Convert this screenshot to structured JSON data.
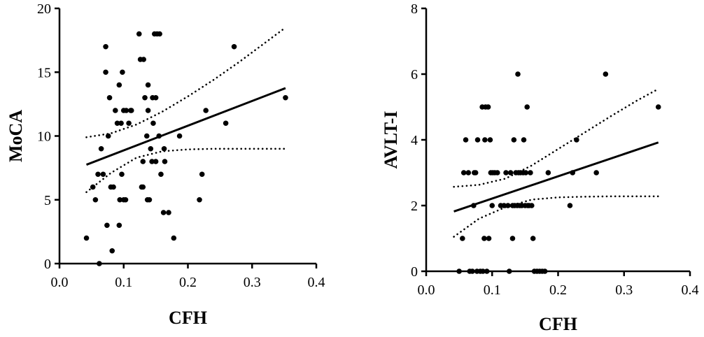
{
  "chart_data": [
    {
      "type": "scatter",
      "title": "",
      "xlabel": "CFH",
      "ylabel": "MoCA",
      "xlim": [
        0.0,
        0.4
      ],
      "ylim": [
        0,
        20
      ],
      "xticks": [
        "0.0",
        "0.1",
        "0.2",
        "0.3",
        "0.4"
      ],
      "yticks": [
        "0",
        "5",
        "10",
        "15",
        "20"
      ],
      "xtick_values": [
        0.0,
        0.1,
        0.2,
        0.3,
        0.4
      ],
      "ytick_values": [
        0,
        5,
        10,
        15,
        20
      ],
      "grid": false,
      "points": [
        [
          0.042,
          2
        ],
        [
          0.052,
          6
        ],
        [
          0.056,
          5
        ],
        [
          0.06,
          7
        ],
        [
          0.062,
          0
        ],
        [
          0.065,
          9
        ],
        [
          0.068,
          7
        ],
        [
          0.072,
          15
        ],
        [
          0.072,
          17
        ],
        [
          0.074,
          3
        ],
        [
          0.076,
          10
        ],
        [
          0.078,
          13
        ],
        [
          0.08,
          6
        ],
        [
          0.082,
          1
        ],
        [
          0.084,
          6
        ],
        [
          0.087,
          12
        ],
        [
          0.09,
          11
        ],
        [
          0.093,
          14
        ],
        [
          0.093,
          3
        ],
        [
          0.094,
          5
        ],
        [
          0.096,
          11
        ],
        [
          0.097,
          7
        ],
        [
          0.098,
          15
        ],
        [
          0.1,
          5
        ],
        [
          0.1,
          12
        ],
        [
          0.103,
          5
        ],
        [
          0.104,
          12
        ],
        [
          0.108,
          11
        ],
        [
          0.111,
          12
        ],
        [
          0.112,
          12
        ],
        [
          0.124,
          18
        ],
        [
          0.126,
          16
        ],
        [
          0.128,
          6
        ],
        [
          0.13,
          6
        ],
        [
          0.13,
          8
        ],
        [
          0.131,
          16
        ],
        [
          0.133,
          13
        ],
        [
          0.136,
          10
        ],
        [
          0.137,
          5
        ],
        [
          0.138,
          14
        ],
        [
          0.138,
          12
        ],
        [
          0.14,
          5
        ],
        [
          0.142,
          9
        ],
        [
          0.144,
          8
        ],
        [
          0.145,
          13
        ],
        [
          0.146,
          11
        ],
        [
          0.148,
          18
        ],
        [
          0.15,
          8
        ],
        [
          0.15,
          13
        ],
        [
          0.152,
          18
        ],
        [
          0.155,
          10
        ],
        [
          0.156,
          18
        ],
        [
          0.158,
          7
        ],
        [
          0.162,
          4
        ],
        [
          0.163,
          9
        ],
        [
          0.164,
          8
        ],
        [
          0.17,
          4
        ],
        [
          0.178,
          2
        ],
        [
          0.187,
          10
        ],
        [
          0.218,
          5
        ],
        [
          0.222,
          7
        ],
        [
          0.228,
          12
        ],
        [
          0.259,
          11
        ],
        [
          0.272,
          17
        ],
        [
          0.352,
          13
        ]
      ],
      "regression": {
        "x": [
          0.042,
          0.352
        ],
        "y": [
          7.75,
          13.75
        ]
      },
      "ci_upper": {
        "x": [
          0.042,
          0.08,
          0.12,
          0.16,
          0.2,
          0.24,
          0.28,
          0.32,
          0.352
        ],
        "y": [
          9.9,
          10.2,
          10.9,
          11.9,
          13.1,
          14.4,
          15.8,
          17.3,
          18.5
        ]
      },
      "ci_lower": {
        "x": [
          0.042,
          0.08,
          0.12,
          0.16,
          0.2,
          0.24,
          0.28,
          0.32,
          0.352
        ],
        "y": [
          5.6,
          7.1,
          8.3,
          8.8,
          8.95,
          9.0,
          9.0,
          9.0,
          9.0
        ]
      }
    },
    {
      "type": "scatter",
      "title": "",
      "xlabel": "CFH",
      "ylabel": "AVLT-I",
      "xlim": [
        0.0,
        0.4
      ],
      "ylim": [
        0,
        8
      ],
      "xticks": [
        "0.0",
        "0.1",
        "0.2",
        "0.3",
        "0.4"
      ],
      "yticks": [
        "0",
        "2",
        "4",
        "6",
        "8"
      ],
      "xtick_values": [
        0.0,
        0.1,
        0.2,
        0.3,
        0.4
      ],
      "ytick_values": [
        0,
        2,
        4,
        6,
        8
      ],
      "grid": false,
      "points": [
        [
          0.05,
          0
        ],
        [
          0.055,
          1
        ],
        [
          0.057,
          3
        ],
        [
          0.06,
          4
        ],
        [
          0.064,
          3
        ],
        [
          0.066,
          0
        ],
        [
          0.07,
          0
        ],
        [
          0.072,
          2
        ],
        [
          0.073,
          3
        ],
        [
          0.075,
          3
        ],
        [
          0.077,
          0
        ],
        [
          0.078,
          4
        ],
        [
          0.082,
          0
        ],
        [
          0.085,
          5
        ],
        [
          0.086,
          0
        ],
        [
          0.088,
          1
        ],
        [
          0.089,
          4
        ],
        [
          0.09,
          5
        ],
        [
          0.092,
          0
        ],
        [
          0.094,
          5
        ],
        [
          0.095,
          1
        ],
        [
          0.097,
          4
        ],
        [
          0.098,
          3
        ],
        [
          0.1,
          2
        ],
        [
          0.101,
          3
        ],
        [
          0.104,
          3
        ],
        [
          0.108,
          3
        ],
        [
          0.113,
          2
        ],
        [
          0.118,
          2
        ],
        [
          0.121,
          3
        ],
        [
          0.124,
          2
        ],
        [
          0.126,
          0
        ],
        [
          0.128,
          3
        ],
        [
          0.131,
          2
        ],
        [
          0.131,
          1
        ],
        [
          0.133,
          4
        ],
        [
          0.134,
          2
        ],
        [
          0.136,
          3
        ],
        [
          0.138,
          2
        ],
        [
          0.139,
          6
        ],
        [
          0.14,
          3
        ],
        [
          0.142,
          2
        ],
        [
          0.143,
          3
        ],
        [
          0.145,
          2
        ],
        [
          0.147,
          3
        ],
        [
          0.148,
          4
        ],
        [
          0.15,
          2
        ],
        [
          0.151,
          3
        ],
        [
          0.153,
          5
        ],
        [
          0.154,
          2
        ],
        [
          0.156,
          2
        ],
        [
          0.158,
          3
        ],
        [
          0.16,
          2
        ],
        [
          0.162,
          1
        ],
        [
          0.164,
          0
        ],
        [
          0.168,
          0
        ],
        [
          0.172,
          0
        ],
        [
          0.176,
          0
        ],
        [
          0.18,
          0
        ],
        [
          0.185,
          3
        ],
        [
          0.218,
          2
        ],
        [
          0.222,
          3
        ],
        [
          0.228,
          4
        ],
        [
          0.258,
          3
        ],
        [
          0.272,
          6
        ],
        [
          0.352,
          5
        ]
      ],
      "regression": {
        "x": [
          0.042,
          0.352
        ],
        "y": [
          1.82,
          3.92
        ]
      },
      "ci_upper": {
        "x": [
          0.042,
          0.08,
          0.12,
          0.16,
          0.2,
          0.24,
          0.28,
          0.32,
          0.352
        ],
        "y": [
          2.57,
          2.63,
          2.82,
          3.22,
          3.72,
          4.22,
          4.72,
          5.2,
          5.55
        ]
      },
      "ci_lower": {
        "x": [
          0.042,
          0.08,
          0.12,
          0.16,
          0.2,
          0.24,
          0.28,
          0.32,
          0.352
        ],
        "y": [
          1.05,
          1.6,
          1.95,
          2.18,
          2.25,
          2.27,
          2.28,
          2.28,
          2.28
        ]
      }
    }
  ]
}
